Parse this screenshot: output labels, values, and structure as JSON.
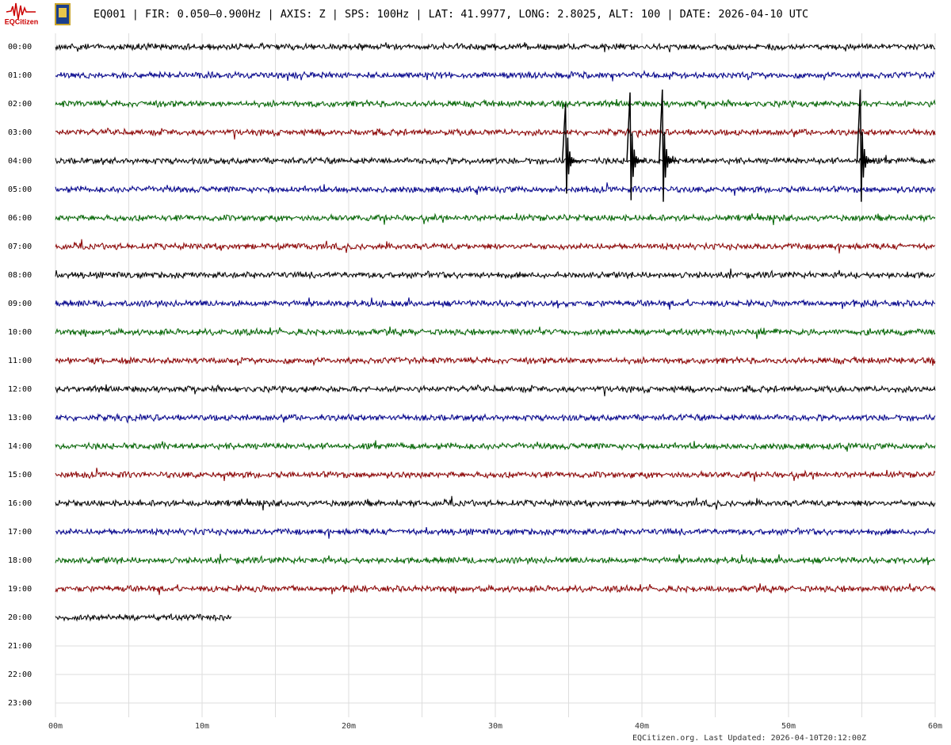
{
  "chart_data": {
    "type": "helicorder",
    "logo_text": "EQCitizen",
    "title": "EQ001 | FIR: 0.050–0.900Hz | AXIS: Z | SPS: 100Hz | LAT: 41.9977, LONG: 2.8025, ALT: 100 | DATE: 2026-04-10 UTC",
    "footer": "EQCitizen.org. Last Updated: 2026-04-10T20:12:00Z",
    "categories": [
      "00:00",
      "01:00",
      "02:00",
      "03:00",
      "04:00",
      "05:00",
      "06:00",
      "07:00",
      "08:00",
      "09:00",
      "10:00",
      "11:00",
      "12:00",
      "13:00",
      "14:00",
      "15:00",
      "16:00",
      "17:00",
      "18:00",
      "19:00",
      "20:00",
      "21:00",
      "22:00",
      "23:00"
    ],
    "colors": [
      "#000000",
      "#00008b",
      "#006400",
      "#8b0000"
    ],
    "trace_end": [
      60,
      60,
      60,
      60,
      60,
      60,
      60,
      60,
      60,
      60,
      60,
      60,
      60,
      60,
      60,
      60,
      60,
      60,
      60,
      60,
      12
    ],
    "xlim": [
      0,
      60
    ],
    "xticks": [
      {
        "value": 0,
        "label": "00m"
      },
      {
        "value": 10,
        "label": "10m"
      },
      {
        "value": 20,
        "label": "20m"
      },
      {
        "value": 30,
        "label": "30m"
      },
      {
        "value": 40,
        "label": "40m"
      },
      {
        "value": 50,
        "label": "50m"
      },
      {
        "value": 60,
        "label": "60m"
      }
    ],
    "xminor": [
      5,
      15,
      25,
      35,
      45,
      55
    ],
    "grid": true,
    "events": [
      {
        "row": 4,
        "minute": 34.9,
        "amplitude": 2
      },
      {
        "row": 4,
        "minute": 39.3,
        "amplitude": 2.4
      },
      {
        "row": 4,
        "minute": 41.5,
        "amplitude": 2.5
      },
      {
        "row": 4,
        "minute": 55,
        "amplitude": 2.5
      }
    ]
  }
}
